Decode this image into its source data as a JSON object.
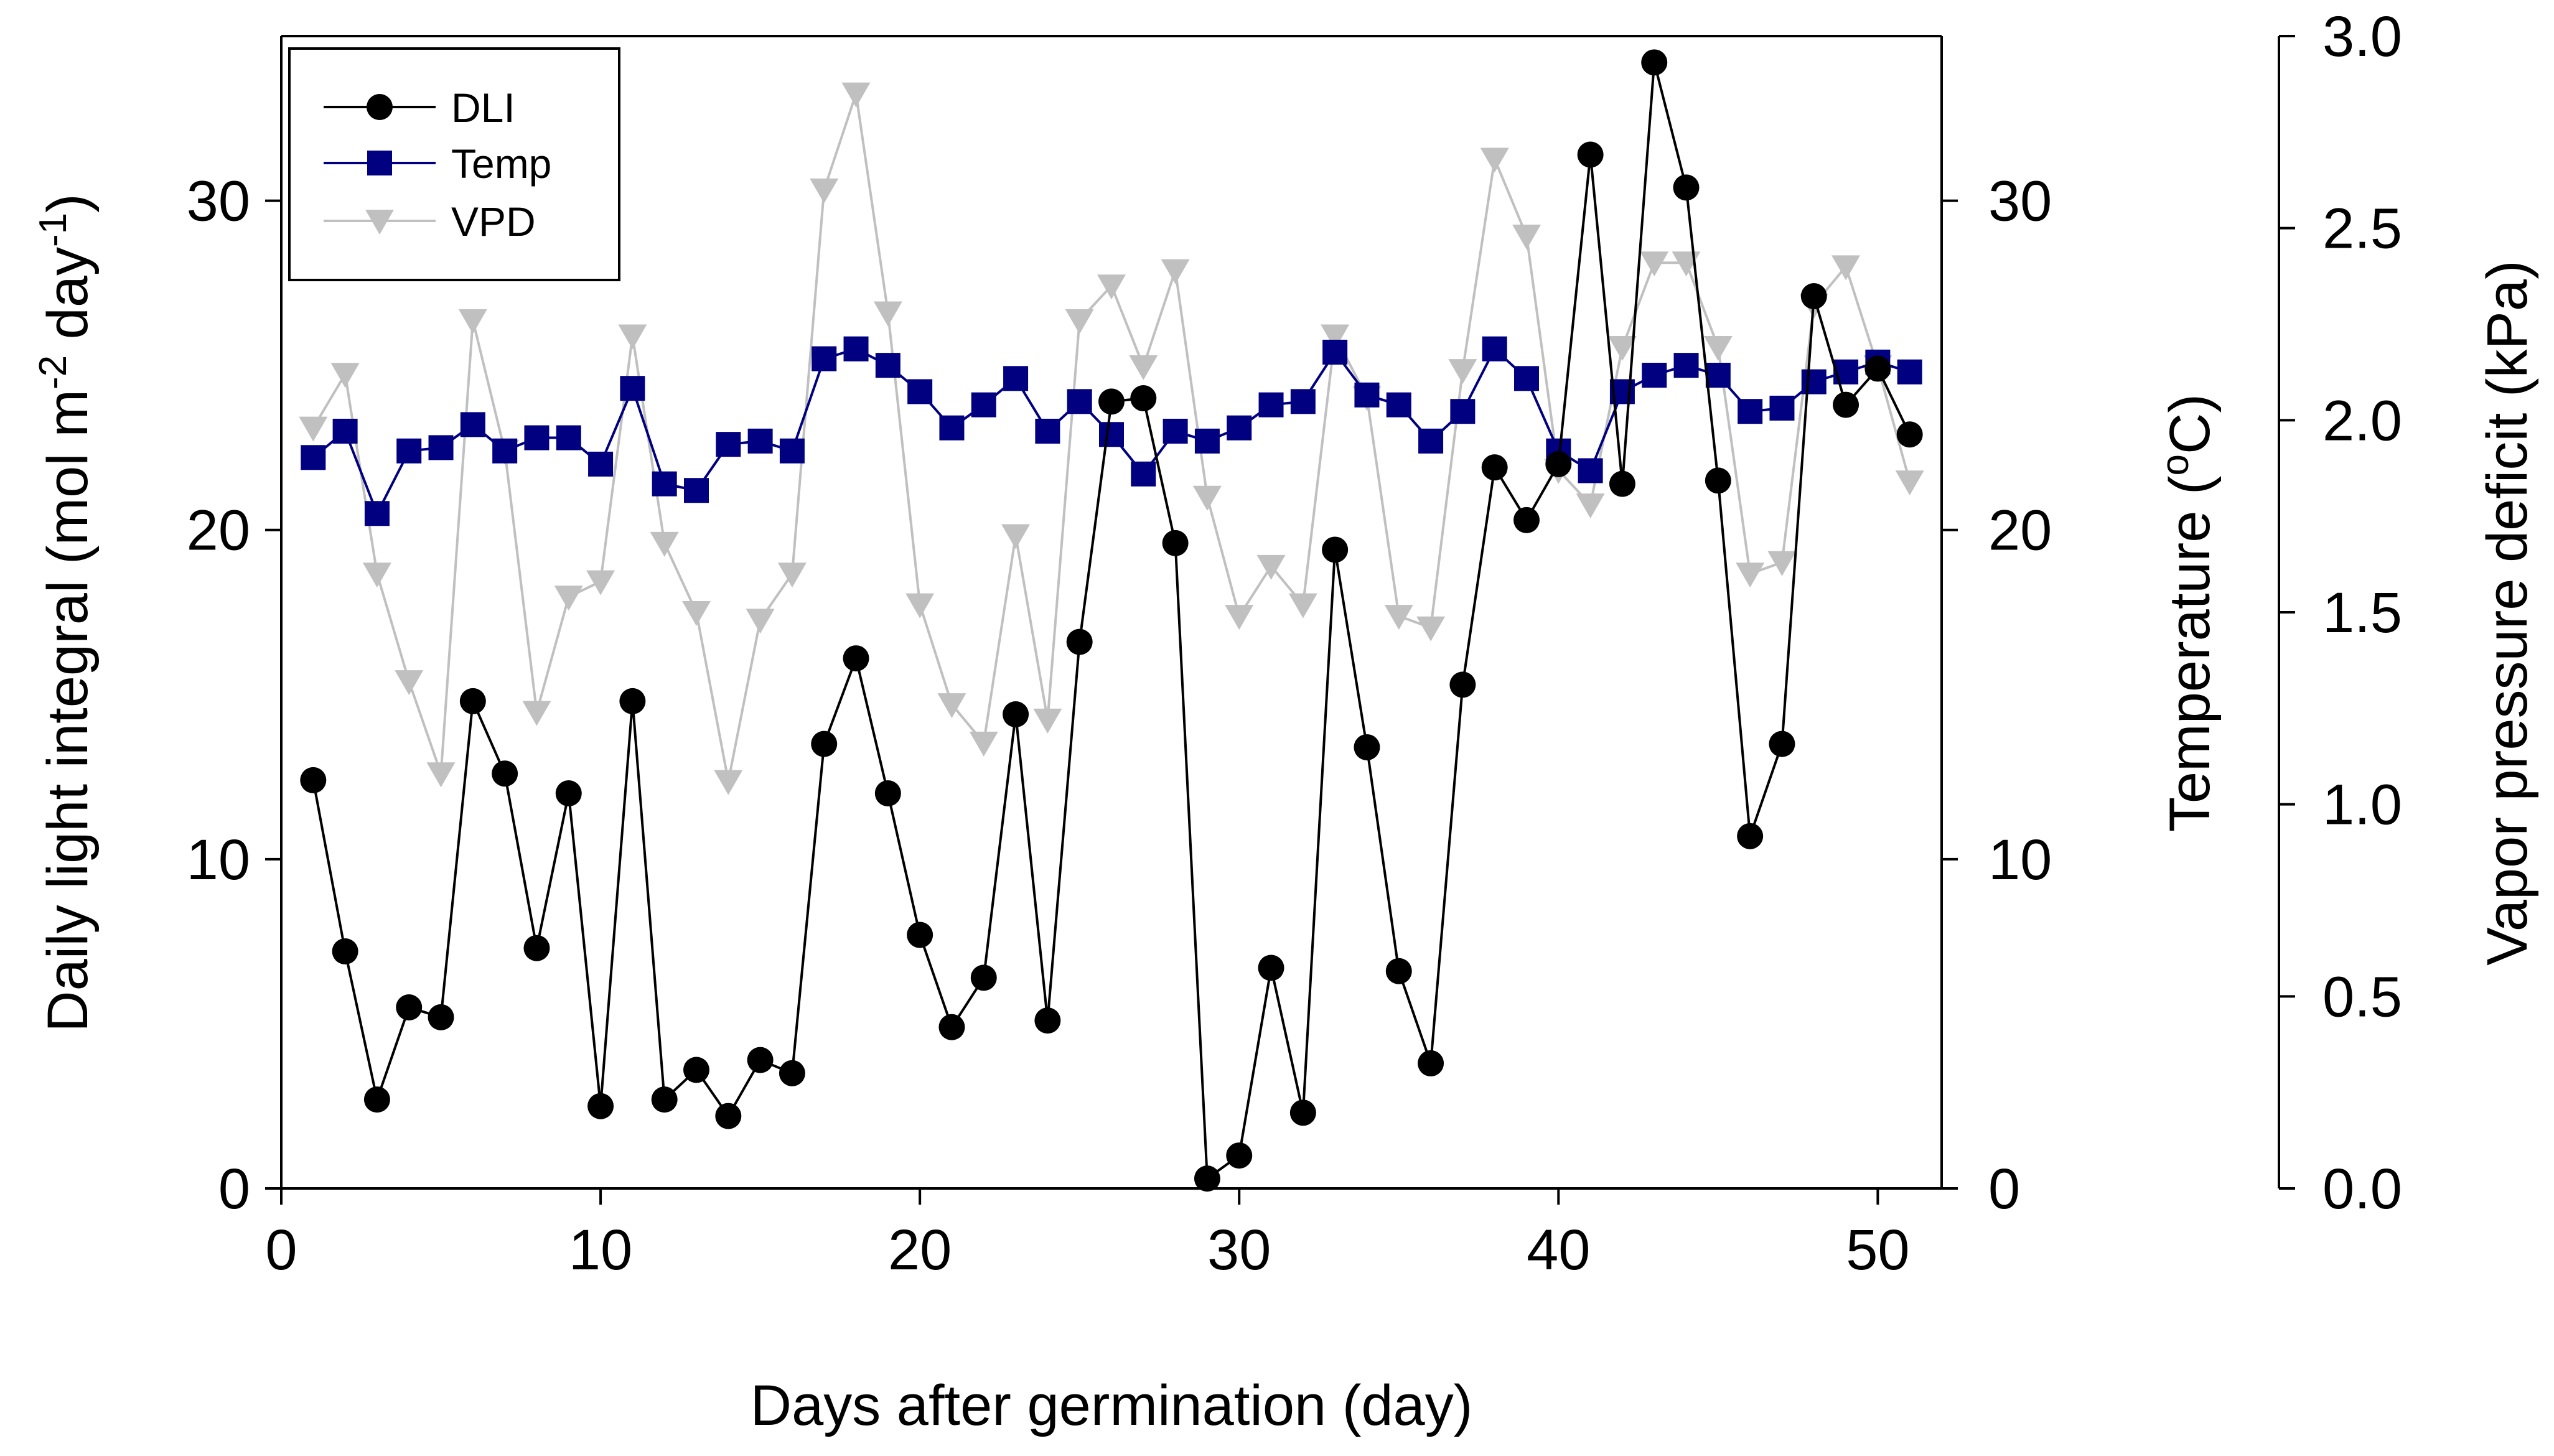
{
  "chart_data": {
    "type": "line",
    "title": "",
    "xlabel": "Days after germination (day)",
    "xlim": [
      0,
      52
    ],
    "xticks": [
      0,
      10,
      20,
      30,
      40,
      50
    ],
    "x": [
      1,
      2,
      3,
      4,
      5,
      6,
      7,
      8,
      9,
      10,
      11,
      12,
      13,
      14,
      15,
      16,
      17,
      18,
      19,
      20,
      21,
      22,
      23,
      24,
      25,
      26,
      27,
      28,
      29,
      30,
      31,
      32,
      33,
      34,
      35,
      36,
      37,
      38,
      39,
      40,
      41,
      42,
      43,
      44,
      45,
      46,
      47,
      48,
      49,
      50,
      51
    ],
    "axes": {
      "left": {
        "label_main": "Daily light integral (mol m",
        "label_sup1": "-2",
        "label_mid": " day",
        "label_sup2": "-1",
        "label_end": ")",
        "ylim": [
          0,
          35
        ],
        "ticks": [
          0,
          10,
          20,
          30
        ]
      },
      "middle": {
        "label_main": "Temperature (",
        "label_sup": "o",
        "label_end": "C)",
        "ylim": [
          0,
          35
        ],
        "ticks": [
          0,
          10,
          20,
          30
        ]
      },
      "right": {
        "label": "Vapor pressure deficit (kPa)",
        "ylim": [
          0,
          3
        ],
        "ticks": [
          "0.0",
          "0.5",
          "1.0",
          "1.5",
          "2.0",
          "2.5",
          "3.0"
        ]
      }
    },
    "series": [
      {
        "name": "DLI",
        "axis": "left",
        "marker": "circle",
        "color": "#000000",
        "values": [
          12.4,
          7.2,
          2.7,
          5.5,
          5.2,
          14.8,
          12.6,
          7.3,
          12.0,
          2.5,
          14.8,
          2.7,
          3.6,
          2.2,
          3.9,
          3.5,
          13.5,
          16.1,
          12.0,
          7.7,
          4.9,
          6.4,
          14.4,
          5.1,
          16.6,
          23.9,
          24.0,
          19.6,
          0.3,
          1.0,
          6.7,
          2.3,
          19.4,
          13.4,
          6.6,
          3.8,
          15.3,
          21.9,
          20.3,
          22.0,
          31.4,
          21.4,
          34.2,
          30.4,
          21.5,
          10.7,
          13.5,
          27.1,
          23.8,
          24.9,
          22.9
        ]
      },
      {
        "name": "Temp",
        "axis": "middle",
        "marker": "square",
        "color": "#000080",
        "values": [
          22.2,
          23.0,
          20.5,
          22.4,
          22.5,
          23.2,
          22.4,
          22.8,
          22.8,
          22.0,
          24.3,
          21.4,
          21.2,
          22.6,
          22.7,
          22.4,
          25.2,
          25.5,
          25.0,
          24.2,
          23.1,
          23.8,
          24.6,
          23.0,
          23.9,
          22.9,
          21.7,
          23.0,
          22.7,
          23.1,
          23.8,
          23.9,
          25.4,
          24.1,
          23.8,
          22.7,
          23.6,
          25.5,
          24.6,
          22.4,
          21.8,
          24.2,
          24.7,
          25.0,
          24.7,
          23.6,
          23.7,
          24.5,
          24.8,
          25.1,
          24.8
        ]
      },
      {
        "name": "VPD",
        "axis": "right",
        "marker": "triangle-down",
        "color": "#c0c0c0",
        "values": [
          1.98,
          2.12,
          1.6,
          1.32,
          1.08,
          2.26,
          1.92,
          1.24,
          1.54,
          1.58,
          2.22,
          1.68,
          1.5,
          1.06,
          1.48,
          1.6,
          2.6,
          2.85,
          2.28,
          1.52,
          1.26,
          1.16,
          1.7,
          1.22,
          2.26,
          2.35,
          2.14,
          2.39,
          1.8,
          1.49,
          1.62,
          1.52,
          2.22,
          2.06,
          1.49,
          1.46,
          2.13,
          2.68,
          2.48,
          1.87,
          1.78,
          2.19,
          2.41,
          2.41,
          2.19,
          1.6,
          1.63,
          2.3,
          2.4,
          2.14,
          1.84
        ]
      }
    ],
    "legend": {
      "position": "top-left",
      "entries": [
        "DLI",
        "Temp",
        "VPD"
      ]
    }
  }
}
